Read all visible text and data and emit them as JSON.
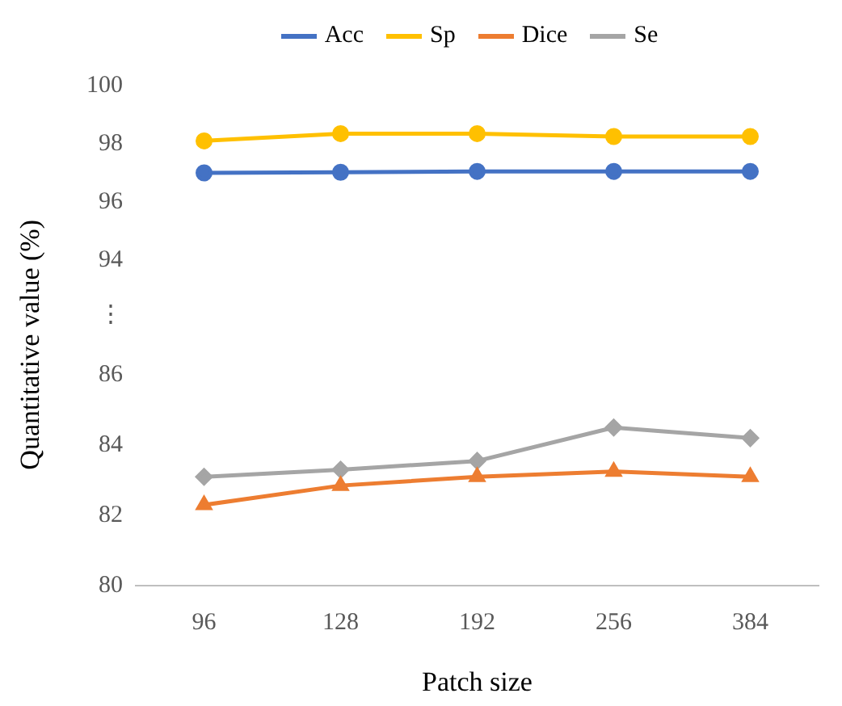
{
  "chart_data": [
    {
      "type": "line",
      "ylabel": "Quantitative value (%)",
      "categories": [
        "96",
        "128",
        "192",
        "256",
        "384"
      ],
      "tick_labels": "y",
      "ylim": [
        94,
        100
      ],
      "yticks": [
        94,
        96,
        98,
        100
      ],
      "legend": "top",
      "grid": false,
      "annotations": [
        "⋮"
      ],
      "series": [
        {
          "name": "Acc",
          "color": "#4472c4",
          "marker": "circle",
          "values": [
            97.0,
            97.02,
            97.05,
            97.05,
            97.05
          ]
        },
        {
          "name": "Sp",
          "color": "#ffc000",
          "marker": "circle",
          "values": [
            98.1,
            98.35,
            98.35,
            98.25,
            98.25
          ]
        }
      ]
    },
    {
      "type": "line",
      "xlabel": "Patch size",
      "categories": [
        "96",
        "128",
        "192",
        "256",
        "384"
      ],
      "ylim": [
        80,
        86
      ],
      "yticks": [
        80,
        82,
        84,
        86
      ],
      "legend": "top",
      "grid": false,
      "series": [
        {
          "name": "Dice",
          "color": "#ed7d31",
          "marker": "triangle",
          "values": [
            82.3,
            82.85,
            83.1,
            83.25,
            83.1
          ]
        },
        {
          "name": "Se",
          "color": "#a5a5a5",
          "marker": "diamond",
          "values": [
            83.1,
            83.3,
            83.55,
            84.5,
            84.2
          ]
        }
      ]
    }
  ]
}
